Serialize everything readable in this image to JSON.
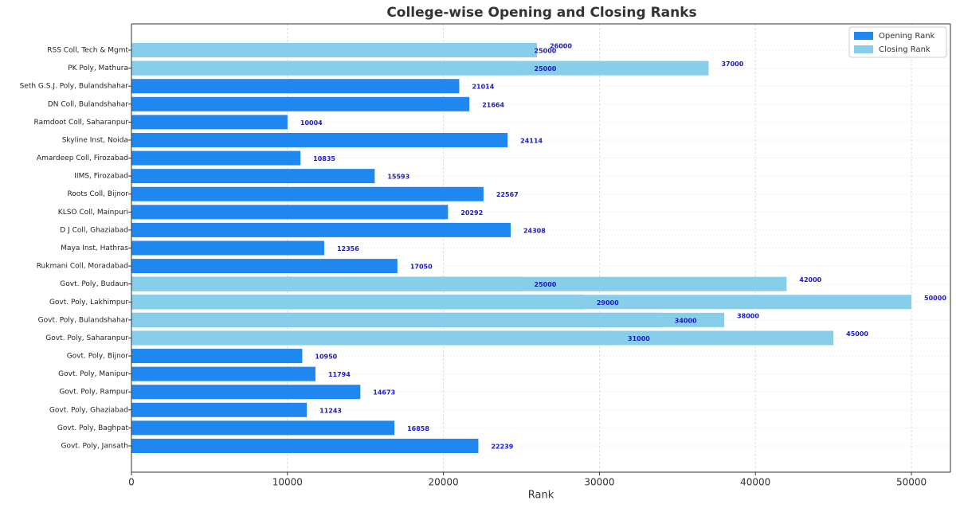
{
  "chart_data": {
    "type": "barh",
    "title": "College-wise Opening and Closing Ranks",
    "xlabel": "Rank",
    "categories": [
      "RSS Coll, Tech & Mgmt",
      "PK Poly, Mathura",
      "Seth G.S.J. Poly, Bulandshahar",
      "DN Coll, Bulandshahar",
      "Ramdoot Coll, Saharanpur",
      "Skyline Inst, Noida",
      "Amardeep Coll, Firozabad",
      "IIMS, Firozabad",
      "Roots Coll, Bijnor",
      "KLSO Coll, Mainpuri",
      "D J Coll, Ghaziabad",
      "Maya Inst, Hathras",
      "Rukmani Coll, Moradabad",
      "Govt. Poly, Budaun",
      "Govt. Poly, Lakhimpur",
      "Govt. Poly, Bulandshahar",
      "Govt. Poly, Saharanpur",
      "Govt. Poly, Bijnor",
      "Govt. Poly, Manipur",
      "Govt. Poly, Rampur",
      "Govt. Poly, Ghaziabad",
      "Govt. Poly, Baghpat",
      "Govt. Poly, Jansath"
    ],
    "series": [
      {
        "name": "Opening Rank",
        "color": "#1e88f0",
        "values": [
          25000,
          25000,
          21014,
          21664,
          10004,
          24114,
          10835,
          15593,
          22567,
          20292,
          24308,
          12356,
          17050,
          25000,
          29000,
          34000,
          31000,
          10950,
          11794,
          14673,
          11243,
          16858,
          22239
        ]
      },
      {
        "name": "Closing Rank",
        "color": "#87ceeb",
        "values": [
          26000,
          37000,
          null,
          null,
          null,
          null,
          null,
          null,
          null,
          null,
          null,
          null,
          null,
          42000,
          50000,
          38000,
          45000,
          null,
          null,
          null,
          null,
          null,
          null
        ]
      }
    ],
    "xlim": [
      0,
      52500
    ],
    "xticks": [
      0,
      10000,
      20000,
      30000,
      40000,
      50000
    ],
    "grid": true,
    "legend": "upper right"
  }
}
